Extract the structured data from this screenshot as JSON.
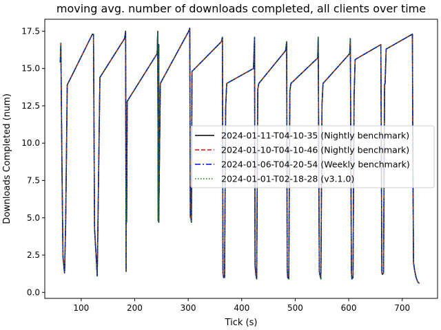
{
  "chart_data": {
    "type": "line",
    "title": "moving avg. number of downloads completed, all clients over time",
    "xlabel": "Tick (s)",
    "ylabel": "Downloads Completed (num)",
    "xlim": [
      32,
      766
    ],
    "ylim": [
      -0.4,
      18.3
    ],
    "xticks": [
      100,
      200,
      300,
      400,
      500,
      600,
      700
    ],
    "xtick_labels": [
      "100",
      "200",
      "300",
      "400",
      "500",
      "600",
      "700"
    ],
    "yticks": [
      0,
      2.5,
      5,
      7.5,
      10,
      12.5,
      15,
      17.5
    ],
    "ytick_labels": [
      "0.0",
      "2.5",
      "5.0",
      "7.5",
      "10.0",
      "12.5",
      "15.0",
      "17.5"
    ],
    "grid": false,
    "legend_position": "center-right",
    "series": [
      {
        "name": "2024-01-11-T04-10-35 (Nightly benchmark)",
        "color": "#000000",
        "style": "solid"
      },
      {
        "name": "2024-01-10-T04-10-46 (Nightly benchmark)",
        "color": "#ff0000",
        "style": "dashed"
      },
      {
        "name": "2024-01-06-T04-20-54 (Weekly benchmark)",
        "color": "#0000ff",
        "style": "dashdot"
      },
      {
        "name": "2024-01-01-T02-18-28 (v3.1.0)",
        "color": "#008000",
        "style": "dotted"
      }
    ],
    "x": [
      61,
      62,
      64,
      66,
      68,
      69,
      71,
      74,
      121,
      123,
      125,
      127,
      129,
      130,
      132,
      135,
      181,
      183,
      184,
      184,
      185,
      186,
      242,
      243,
      244,
      245,
      245,
      248,
      301,
      303,
      304,
      305,
      306,
      307,
      362,
      364,
      365,
      366,
      368,
      370,
      372,
      422,
      424,
      425,
      426,
      428,
      430,
      432,
      482,
      484,
      485,
      486,
      488,
      490,
      492,
      542,
      543,
      545,
      546,
      548,
      550,
      552,
      602,
      603,
      605,
      606,
      608,
      610,
      612,
      660,
      662,
      663,
      665,
      667,
      668,
      670,
      719,
      720,
      721,
      722,
      723,
      726,
      729,
      732
    ],
    "y": [
      15.4,
      16.7,
      8.6,
      2.4,
      1.6,
      1.3,
      4.6,
      13.9,
      17.3,
      17.3,
      4.3,
      3.0,
      1.8,
      1.1,
      6.5,
      14.4,
      17.0,
      17.5,
      1.4,
      7.5,
      4.7,
      12.8,
      16.0,
      17.5,
      4.8,
      16.6,
      4.7,
      14.0,
      17.5,
      17.7,
      5.0,
      5.0,
      4.7,
      14.8,
      16.8,
      17.1,
      1.3,
      1.0,
      1.0,
      12.4,
      14.0,
      15.0,
      17.1,
      1.8,
      1.3,
      0.9,
      13.6,
      14.0,
      16.2,
      16.8,
      1.5,
      1.0,
      0.9,
      13.5,
      14.0,
      15.7,
      17.1,
      1.4,
      1.2,
      0.9,
      12.6,
      14.0,
      16.0,
      17.0,
      1.4,
      0.9,
      1.0,
      13.2,
      15.6,
      16.6,
      1.3,
      1.2,
      1.3,
      13.9,
      14.0,
      16.3,
      17.3,
      8.0,
      2.0,
      1.8,
      1.5,
      1.0,
      0.7,
      0.6
    ]
  }
}
